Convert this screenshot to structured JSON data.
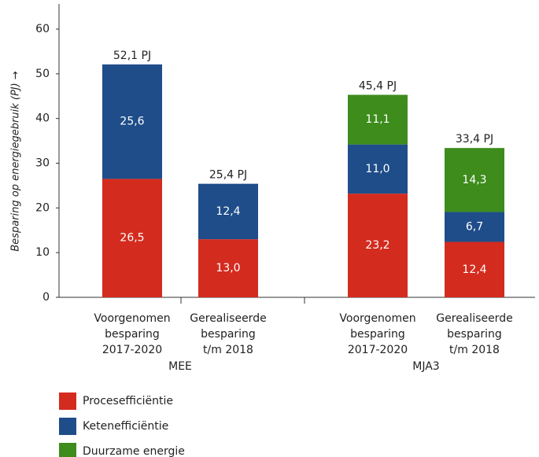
{
  "chart_data": {
    "type": "stacked_bar",
    "ylabel": "Besparing op energiegebruik (PJ) →",
    "categories": [
      [
        "Voorgenomen",
        "besparing",
        "2017-2020"
      ],
      [
        "Gerealiseerde",
        "besparing",
        "t/m 2018"
      ],
      [
        "Voorgenomen",
        "besparing",
        "2017-2020"
      ],
      [
        "Gerealiseerde",
        "besparing",
        "t/m 2018"
      ]
    ],
    "groups": [
      "MEE",
      "MJA3"
    ],
    "series": [
      {
        "name": "Procesefficiëntie",
        "color": "#d42b1f",
        "values": [
          26.5,
          13.0,
          23.2,
          12.4
        ],
        "value_labels": [
          "26,5",
          "13,0",
          "23,2",
          "12,4"
        ]
      },
      {
        "name": "Ketenefficiëntie",
        "color": "#1f4d8a",
        "values": [
          25.6,
          12.4,
          11.0,
          6.7
        ],
        "value_labels": [
          "25,6",
          "12,4",
          "11,0",
          "6,7"
        ]
      },
      {
        "name": "Duurzame energie",
        "color": "#3d8c1c",
        "values": [
          null,
          null,
          11.1,
          14.3
        ],
        "value_labels": [
          null,
          null,
          "11,1",
          "14,3"
        ]
      }
    ],
    "totals": [
      52.1,
      25.4,
      45.4,
      33.4
    ],
    "total_labels": [
      "52,1 PJ",
      "25,4 PJ",
      "45,4 PJ",
      "33,4 PJ"
    ],
    "ylim": [
      0,
      60
    ],
    "yticks": [
      0,
      10,
      20,
      30,
      40,
      50,
      60
    ],
    "legend": "bottom-left"
  }
}
